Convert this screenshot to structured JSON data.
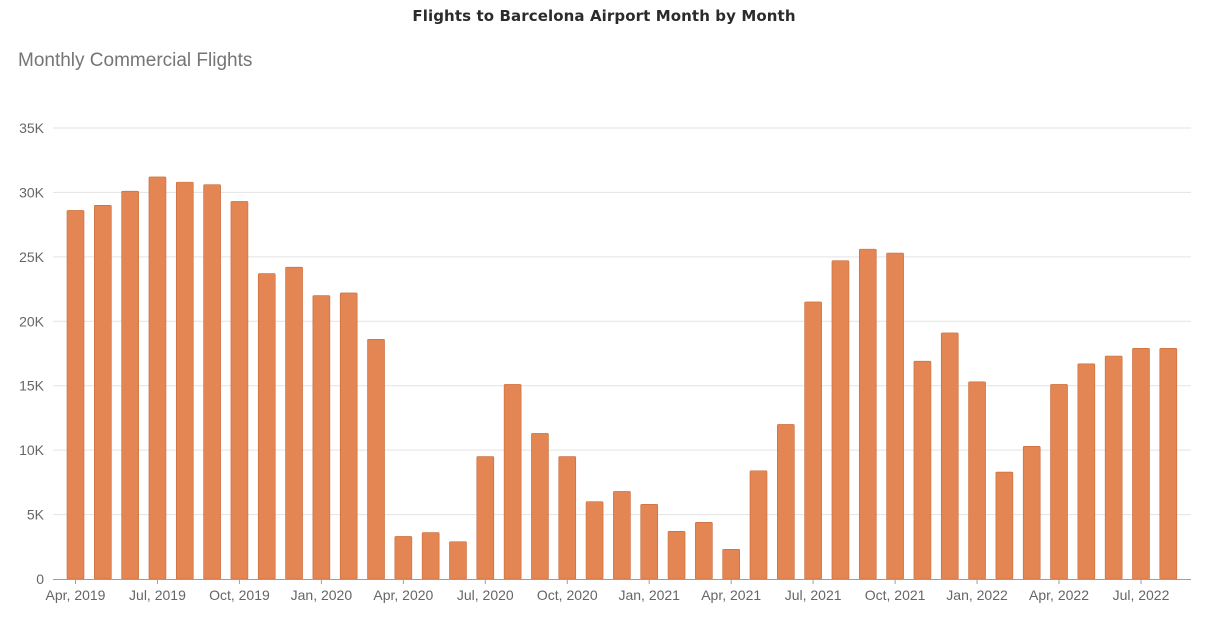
{
  "page_title": "Flights to Barcelona Airport Month by Month",
  "chart_data": {
    "type": "bar",
    "title": "Monthly Commercial Flights",
    "xlabel": "",
    "ylabel": "",
    "ylim": [
      0,
      35000
    ],
    "grid": true,
    "legend": "none",
    "color": "#e38653",
    "edge_color": "#c96a3a",
    "yticks": [
      {
        "value": 0,
        "label": "0"
      },
      {
        "value": 5000,
        "label": "5K"
      },
      {
        "value": 10000,
        "label": "10K"
      },
      {
        "value": 15000,
        "label": "15K"
      },
      {
        "value": 20000,
        "label": "20K"
      },
      {
        "value": 25000,
        "label": "25K"
      },
      {
        "value": 30000,
        "label": "30K"
      },
      {
        "value": 35000,
        "label": "35K"
      }
    ],
    "categories": [
      "Apr, 2019",
      "May, 2019",
      "Jun, 2019",
      "Jul, 2019",
      "Aug, 2019",
      "Sep, 2019",
      "Oct, 2019",
      "Nov, 2019",
      "Dec, 2019",
      "Jan, 2020",
      "Feb, 2020",
      "Mar, 2020",
      "Apr, 2020",
      "May, 2020",
      "Jun, 2020",
      "Jul, 2020",
      "Aug, 2020",
      "Sep, 2020",
      "Oct, 2020",
      "Nov, 2020",
      "Dec, 2020",
      "Jan, 2021",
      "Feb, 2021",
      "Mar, 2021",
      "Apr, 2021",
      "May, 2021",
      "Jun, 2021",
      "Jul, 2021",
      "Aug, 2021",
      "Sep, 2021",
      "Oct, 2021",
      "Nov, 2021",
      "Dec, 2021",
      "Jan, 2022",
      "Feb, 2022",
      "Mar, 2022",
      "Apr, 2022",
      "May, 2022",
      "Jun, 2022",
      "Jul, 2022",
      "Aug, 2022"
    ],
    "values": [
      28600,
      29000,
      30100,
      31200,
      30800,
      30600,
      29300,
      23700,
      24200,
      22000,
      22200,
      18600,
      3300,
      3600,
      2900,
      9500,
      15100,
      11300,
      9500,
      6000,
      6800,
      5800,
      3700,
      4400,
      2300,
      8400,
      12000,
      21500,
      24700,
      25600,
      25300,
      16900,
      19100,
      15300,
      8300,
      10300,
      15100,
      16700,
      17300,
      17900,
      17900
    ],
    "xtick_labels": [
      {
        "index": 0,
        "label": "Apr, 2019"
      },
      {
        "index": 3,
        "label": "Jul, 2019"
      },
      {
        "index": 6,
        "label": "Oct, 2019"
      },
      {
        "index": 9,
        "label": "Jan, 2020"
      },
      {
        "index": 12,
        "label": "Apr, 2020"
      },
      {
        "index": 15,
        "label": "Jul, 2020"
      },
      {
        "index": 18,
        "label": "Oct, 2020"
      },
      {
        "index": 21,
        "label": "Jan, 2021"
      },
      {
        "index": 24,
        "label": "Apr, 2021"
      },
      {
        "index": 27,
        "label": "Jul, 2021"
      },
      {
        "index": 30,
        "label": "Oct, 2021"
      },
      {
        "index": 33,
        "label": "Jan, 2022"
      },
      {
        "index": 36,
        "label": "Apr, 2022"
      },
      {
        "index": 39,
        "label": "Jul, 2022"
      }
    ]
  }
}
